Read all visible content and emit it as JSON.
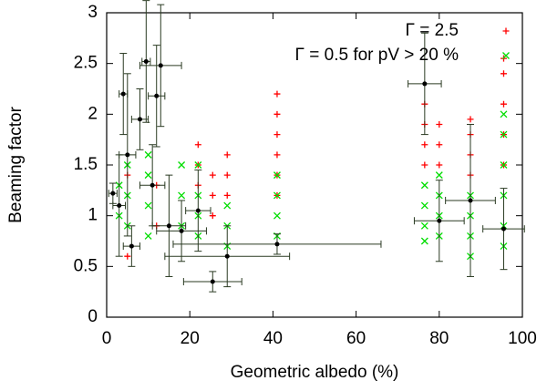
{
  "chart_data": {
    "type": "scatter",
    "xlabel": "Geometric albedo (%)",
    "ylabel": "Beaming factor",
    "xlim": [
      0,
      100
    ],
    "ylim": [
      0,
      3
    ],
    "xticks": [
      0,
      20,
      40,
      60,
      80,
      100
    ],
    "yticks": [
      0,
      0.5,
      1,
      1.5,
      2,
      2.5,
      3
    ],
    "legend": "upper right",
    "series": [
      {
        "name": "Γ = 2.5",
        "color": "#ff0000",
        "marker": "plus",
        "x": [
          41,
          41,
          41,
          41,
          41,
          41,
          76.5,
          76.5,
          76.5,
          76.5,
          80,
          80,
          80,
          87.5,
          87.5,
          87.5,
          87.5,
          95.5,
          95.5,
          95.5,
          95.5,
          95.5,
          29,
          29,
          29,
          22,
          22,
          22,
          25.5,
          25.5,
          25.5,
          12,
          12,
          5,
          5
        ],
        "values": [
          1.2,
          1.4,
          1.6,
          1.8,
          2.0,
          2.2,
          1.5,
          1.7,
          1.9,
          2.1,
          1.5,
          1.7,
          1.9,
          1.4,
          1.6,
          1.8,
          1.95,
          1.5,
          1.8,
          2.1,
          2.4,
          2.55,
          1.2,
          1.4,
          1.6,
          1.3,
          1.5,
          1.7,
          1.0,
          1.2,
          1.4,
          0.9,
          1.3,
          0.6,
          1.4
        ]
      },
      {
        "name": "Γ = 0.5 for pV > 20 %",
        "color": "#00dd00",
        "marker": "cross",
        "x": [
          41,
          41,
          41,
          41,
          76.5,
          76.5,
          76.5,
          76.5,
          80,
          80,
          80,
          80,
          87.5,
          87.5,
          87.5,
          87.5,
          95.5,
          95.5,
          95.5,
          95.5,
          95.5,
          95.5,
          29,
          29,
          29,
          22,
          22,
          22,
          22,
          18,
          18,
          18,
          10,
          10,
          10,
          10,
          5,
          5,
          5,
          3,
          3
        ],
        "values": [
          0.8,
          1.0,
          1.2,
          1.4,
          0.75,
          0.9,
          1.1,
          1.3,
          0.8,
          1.0,
          1.2,
          1.4,
          0.6,
          0.8,
          1.0,
          1.2,
          0.7,
          0.9,
          1.2,
          1.5,
          1.8,
          2.0,
          0.7,
          0.9,
          1.1,
          0.8,
          1.0,
          1.2,
          1.5,
          0.9,
          1.2,
          1.5,
          0.8,
          1.1,
          1.4,
          1.6,
          0.9,
          1.2,
          1.5,
          1.0,
          1.3
        ]
      },
      {
        "color": "#000000",
        "marker": "dot",
        "x": [
          1.5,
          3,
          4,
          5,
          6,
          8,
          9.5,
          11,
          12,
          13,
          15,
          18,
          22,
          25.5,
          29,
          41,
          76.5,
          80,
          87.5,
          95.5
        ],
        "values": [
          1.22,
          1.1,
          2.2,
          1.6,
          0.7,
          1.95,
          2.52,
          1.3,
          2.18,
          2.48,
          0.9,
          0.85,
          1.05,
          0.35,
          0.6,
          0.72,
          2.3,
          0.95,
          1.15,
          0.87
        ],
        "xerr": [
          1,
          1.5,
          1,
          2,
          2,
          2,
          1,
          3,
          2,
          5,
          4,
          6,
          3,
          7,
          15,
          25,
          4,
          6,
          6,
          5
        ],
        "yerr": [
          0.1,
          0.5,
          0.4,
          0.8,
          0.2,
          0.3,
          0.6,
          0.4,
          0.5,
          0.6,
          0.5,
          0.3,
          0.4,
          0.1,
          0.3,
          0.1,
          0.5,
          0.4,
          0.75,
          0.4
        ]
      }
    ]
  }
}
